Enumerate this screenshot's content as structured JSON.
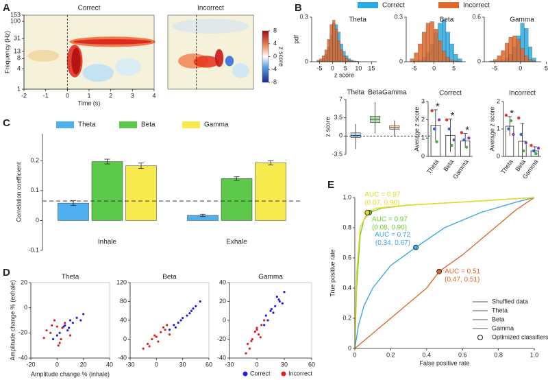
{
  "chart_data": [
    {
      "type": "heatmap",
      "panel": "A",
      "xlabel": "Time (s)",
      "ylabel": "Frequency (Hz)",
      "zlabel": "z score",
      "zlim": [
        -8,
        8
      ],
      "zticks": [
        -8,
        -4,
        0,
        4,
        8
      ],
      "subplots": [
        {
          "title": "Correct",
          "xlim": [
            -2,
            4
          ],
          "xticks": [
            -2,
            -1,
            0,
            1,
            2,
            3,
            4
          ],
          "ylim": [
            1,
            153
          ],
          "log_y": true,
          "yticks": [
            1,
            4,
            8,
            13,
            31,
            100,
            153
          ]
        },
        {
          "title": "Incorrect"
        }
      ]
    },
    {
      "type": "histogram",
      "panel": "B",
      "xlabel": "z score",
      "ylabel": "pdf",
      "legend": [
        {
          "name": "Correct",
          "color": "#29abe2"
        },
        {
          "name": "Incorrect",
          "color": "#e0672a"
        }
      ],
      "subplots": [
        {
          "title": "Theta",
          "xlim": [
            -8,
            17
          ],
          "xticks": [
            -5,
            0,
            5,
            10,
            15
          ],
          "ylim": [
            0,
            0.3
          ],
          "yticks": [
            0,
            0.3
          ],
          "bins": [
            -6,
            -5,
            -4,
            -3,
            -2,
            -1,
            0,
            1,
            2,
            3,
            4,
            5,
            6,
            7,
            8,
            9,
            10
          ],
          "series": [
            {
              "values": [
                0.005,
                0.01,
                0.02,
                0.05,
                0.1,
                0.18,
                0.26,
                0.25,
                0.2,
                0.12,
                0.07,
                0.04,
                0.02,
                0.01,
                0.005,
                0.003
              ]
            },
            {
              "values": [
                0.01,
                0.02,
                0.04,
                0.08,
                0.15,
                0.25,
                0.28,
                0.22,
                0.14,
                0.08,
                0.04,
                0.02,
                0.01,
                0.005,
                0.002,
                0.001
              ]
            }
          ]
        },
        {
          "title": "Beta",
          "xlim": [
            -7,
            8
          ],
          "xticks": [
            -5,
            0,
            5
          ],
          "ylim": [
            0,
            0.3
          ],
          "yticks": [
            0,
            0.3
          ],
          "bins": [
            -6,
            -5,
            -4,
            -3,
            -2,
            -1,
            0,
            1,
            2,
            3,
            4,
            5,
            6,
            7
          ],
          "series": [
            {
              "values": [
                0.002,
                0.005,
                0.01,
                0.03,
                0.06,
                0.12,
                0.2,
                0.26,
                0.28,
                0.2,
                0.12,
                0.05,
                0.02
              ]
            },
            {
              "values": [
                0.02,
                0.06,
                0.12,
                0.2,
                0.26,
                0.27,
                0.22,
                0.14,
                0.07,
                0.03,
                0.01,
                0.005,
                0.002
              ]
            }
          ]
        },
        {
          "title": "Gamma",
          "xlim": [
            -7,
            4
          ],
          "xticks": [
            -5,
            0,
            5
          ],
          "ylim": [
            0,
            0.6
          ],
          "yticks": [
            0,
            0.6
          ],
          "bins": [
            -6,
            -5.25,
            -4.5,
            -3.75,
            -3,
            -2.25,
            -1.5,
            -0.75,
            0,
            0.75,
            1.5,
            2.25,
            3
          ],
          "series": [
            {
              "values": [
                0,
                0.005,
                0.01,
                0.02,
                0.05,
                0.1,
                0.2,
                0.35,
                0.52,
                0.45,
                0.2,
                0.05
              ]
            },
            {
              "values": [
                0.01,
                0.03,
                0.08,
                0.15,
                0.25,
                0.33,
                0.35,
                0.3,
                0.18,
                0.08,
                0.03,
                0.01
              ]
            }
          ]
        }
      ]
    },
    {
      "type": "box",
      "ylabel": "z score",
      "categories": [
        "Theta",
        "Beta",
        "Gamma"
      ],
      "colors": [
        "#6aaee0",
        "#5cbf5a",
        "#e8b060"
      ],
      "ylim": [
        -3.5,
        7
      ],
      "yticks": [
        -3.5,
        0,
        3.5,
        7
      ],
      "min": [
        -2.5,
        0.5,
        0
      ],
      "q1": [
        -0.3,
        2.6,
        1.3
      ],
      "median": [
        0.1,
        3.2,
        1.6
      ],
      "q3": [
        0.6,
        3.8,
        2.0
      ],
      "max": [
        2.3,
        6.5,
        3
      ]
    },
    {
      "type": "bar",
      "title": "Correct",
      "ylabel": "Average z score",
      "categories": [
        "Theta",
        "Beta",
        "Gamma"
      ],
      "values": [
        1.7,
        1.15,
        0.85
      ],
      "errors": [
        0.85,
        0.9,
        0.4
      ],
      "annotations": [
        "*",
        "*",
        "*"
      ],
      "points": [
        [
          2.5,
          1.5,
          0.8,
          2.0
        ],
        [
          2.0,
          1.5,
          0.6,
          0.9
        ],
        [
          1.3,
          0.9,
          0.5,
          1.0
        ]
      ],
      "point_colors": [
        "#e0342a",
        "#3060e0",
        "#40b040",
        "#8040c0"
      ],
      "ylim": [
        0,
        3
      ],
      "yticks": [
        0,
        1,
        2,
        3
      ]
    },
    {
      "type": "bar",
      "title": "Incorrect",
      "ylabel": "Average z score",
      "categories": [
        "Theta",
        "Beta",
        "Gamma"
      ],
      "values": [
        1.1,
        0.55,
        0.2
      ],
      "errors": [
        0.35,
        0.65,
        0.15
      ],
      "annotations": [
        "*",
        null,
        null
      ],
      "points": [
        [
          1.5,
          1.0,
          1.3,
          0.8
        ],
        [
          1.4,
          0.8,
          0.2,
          0.5
        ],
        [
          0.4,
          0.2,
          0.1,
          0.3
        ]
      ],
      "point_colors": [
        "#e0342a",
        "#3060e0",
        "#40b040",
        "#8040c0"
      ],
      "ylim": [
        0,
        2
      ],
      "yticks": [
        0,
        1,
        2
      ]
    },
    {
      "type": "bar",
      "panel": "C",
      "ylabel": "Correlation coefficient",
      "categories": [
        "Inhale",
        "Exhale"
      ],
      "series": [
        {
          "name": "Theta",
          "color": "#4fb0f0",
          "values": [
            0.058,
            0.017
          ],
          "errors": [
            0.008,
            0.004
          ]
        },
        {
          "name": "Beta",
          "color": "#5cc94a",
          "values": [
            0.197,
            0.14
          ],
          "errors": [
            0.008,
            0.006
          ]
        },
        {
          "name": "Gamma",
          "color": "#f6ea4e",
          "values": [
            0.183,
            0.193
          ],
          "errors": [
            0.009,
            0.007
          ]
        }
      ],
      "reference_line": 0.065,
      "ylim": [
        -0.1,
        0.29
      ],
      "yticks": [
        -0.1,
        0,
        0.1,
        0.2
      ]
    },
    {
      "type": "scatter",
      "panel": "D",
      "xlabel": "Amplitude change % (inhale)",
      "ylabel": "Amplitude change % (exhale)",
      "legend": [
        {
          "name": "Correct",
          "color": "#2020e0"
        },
        {
          "name": "Incorrect",
          "color": "#e02020"
        }
      ],
      "subplots": [
        {
          "title": "Theta",
          "xlim": [
            -20,
            40
          ],
          "xticks": [
            -20,
            0,
            20,
            40
          ],
          "ylim": [
            -40,
            20
          ],
          "yticks": [
            -40,
            -20,
            0,
            20
          ],
          "series": [
            {
              "x": [
                5,
                10,
                2,
                15,
                8,
                -3,
                12,
                20,
                6,
                0,
                18,
                9
              ],
              "y": [
                -15,
                -10,
                -20,
                -8,
                -18,
                -25,
                -12,
                -5,
                -14,
                -22,
                -10,
                -16
              ]
            },
            {
              "x": [
                -5,
                0,
                3,
                -8,
                6,
                2,
                -2,
                10,
                -10,
                4,
                1,
                -4
              ],
              "y": [
                -20,
                -15,
                -25,
                -18,
                -12,
                -28,
                -10,
                -22,
                -24,
                -16,
                -30,
                -14
              ]
            }
          ]
        },
        {
          "title": "Beta",
          "xlim": [
            -30,
            60
          ],
          "xticks": [
            -30,
            0,
            30,
            60
          ],
          "ylim": [
            -40,
            120
          ],
          "yticks": [
            -40,
            0,
            40,
            80,
            120
          ],
          "series": [
            {
              "x": [
                20,
                30,
                40,
                25,
                35,
                45,
                15,
                50,
                28,
                38,
                22,
                42
              ],
              "y": [
                30,
                45,
                60,
                35,
                50,
                70,
                20,
                80,
                40,
                55,
                25,
                65
              ]
            },
            {
              "x": [
                -10,
                0,
                5,
                -5,
                10,
                15,
                -15,
                8,
                2,
                -8,
                12,
                -2
              ],
              "y": [
                -10,
                5,
                15,
                0,
                20,
                10,
                -20,
                25,
                -5,
                -15,
                30,
                8
              ]
            }
          ]
        },
        {
          "title": "Gamma",
          "xlim": [
            -30,
            60
          ],
          "xticks": [
            -30,
            0,
            30,
            60
          ],
          "ylim": [
            -40,
            40
          ],
          "yticks": [
            -40,
            -20,
            0,
            20,
            40
          ],
          "series": [
            {
              "x": [
                10,
                15,
                20,
                25,
                12,
                18,
                22,
                30,
                8,
                28,
                16,
                24
              ],
              "y": [
                5,
                10,
                15,
                20,
                0,
                8,
                25,
                30,
                -5,
                18,
                12,
                22
              ]
            },
            {
              "x": [
                -10,
                -5,
                0,
                5,
                -8,
                2,
                -2,
                8,
                -12,
                4,
                0,
                -6
              ],
              "y": [
                -25,
                -20,
                -10,
                -5,
                -30,
                -15,
                -12,
                0,
                -35,
                -18,
                -8,
                -22
              ]
            }
          ]
        }
      ]
    },
    {
      "type": "line",
      "panel": "E",
      "xlabel": "False positive rate",
      "ylabel": "True positive rate",
      "xlim": [
        0,
        1
      ],
      "xticks": [
        0,
        0.2,
        0.4,
        0.6,
        0.8,
        {
          "value": 1,
          "label": "1.0"
        }
      ],
      "ylim": [
        0,
        1
      ],
      "yticks": [
        0,
        0.2,
        0.4,
        0.6,
        0.8,
        {
          "value": 1,
          "label": "1.0"
        }
      ],
      "optimized_label": "Optimized classifiers",
      "series": [
        {
          "name": "Shuffled data",
          "color": "#e0672a",
          "x": [
            0,
            0.1,
            0.2,
            0.3,
            0.4,
            0.47,
            0.6,
            0.7,
            0.8,
            0.9,
            1
          ],
          "values": [
            0,
            0.1,
            0.2,
            0.3,
            0.4,
            0.51,
            0.62,
            0.72,
            0.82,
            0.92,
            1
          ],
          "optimal": [
            0.47,
            0.51
          ],
          "auc_label": "AUC = 0.51",
          "optimal_label": "(0.47, 0.51)"
        },
        {
          "name": "Theta",
          "color": "#3ca8e0",
          "x": [
            0,
            0.02,
            0.05,
            0.1,
            0.2,
            0.34,
            0.5,
            0.7,
            0.9,
            1
          ],
          "values": [
            0,
            0.15,
            0.28,
            0.4,
            0.55,
            0.67,
            0.8,
            0.9,
            0.97,
            1
          ],
          "optimal": [
            0.34,
            0.67
          ],
          "auc_label": "AUC = 0.72",
          "optimal_label": "(0.34, 0.67)"
        },
        {
          "name": "Beta",
          "color": "#6cd030",
          "x": [
            0,
            0.01,
            0.03,
            0.05,
            0.08,
            0.15,
            0.3,
            0.6,
            1
          ],
          "values": [
            0,
            0.4,
            0.75,
            0.85,
            0.9,
            0.93,
            0.95,
            0.97,
            1
          ],
          "optimal": [
            0.08,
            0.9
          ],
          "auc_label": "AUC = 0.97",
          "optimal_label": "(0.08, 0.90)"
        },
        {
          "name": "Gamma",
          "color": "#e8d820",
          "x": [
            0,
            0.01,
            0.03,
            0.07,
            0.12,
            0.3,
            0.6,
            1
          ],
          "values": [
            0,
            0.5,
            0.8,
            0.9,
            0.93,
            0.95,
            0.97,
            1
          ],
          "optimal": [
            0.07,
            0.9
          ],
          "auc_label": "AUC = 0.97",
          "optimal_label": "(0.07, 0.90)"
        }
      ]
    }
  ]
}
